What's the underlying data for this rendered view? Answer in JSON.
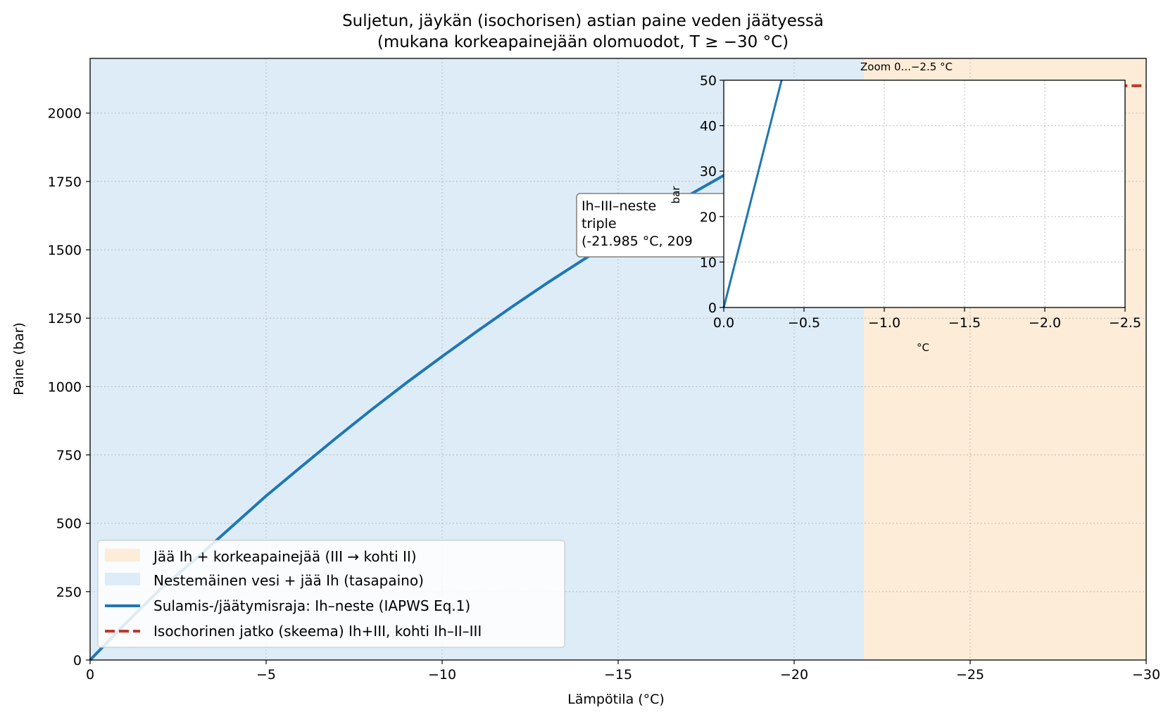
{
  "chart_data": [
    {
      "type": "line",
      "title": "Suljetun, jäykän (isochorisen) astian paine veden jäätyessä",
      "subtitle": "(mukana korkeapainejään olomuodot, T ≥ −30 °C)",
      "xlabel": "Lämpötila (°C)",
      "ylabel": "Paine (bar)",
      "xlim": [
        0,
        -30
      ],
      "ylim": [
        0,
        2200
      ],
      "x_ticks": [
        0,
        -5,
        -10,
        -15,
        -20,
        -25,
        -30
      ],
      "x_tick_labels": [
        "0",
        "−5",
        "−10",
        "−15",
        "−20",
        "−25",
        "−30"
      ],
      "y_ticks": [
        0,
        250,
        500,
        750,
        1000,
        1250,
        1500,
        1750,
        2000
      ],
      "y_tick_labels": [
        "0",
        "250",
        "500",
        "750",
        "1000",
        "1250",
        "1500",
        "1750",
        "2000"
      ],
      "grid": true,
      "legend_position": "lower-left",
      "regions": [
        {
          "name": "Nestemäinen vesi + jää Ih (tasapaino)",
          "x_from": 0,
          "x_to": -21.985,
          "color": "#ddecf7"
        },
        {
          "name": "Jää Ih + korkeapainejää (III → kohti II)",
          "x_from": -21.985,
          "x_to": -30,
          "color": "#fdecd8"
        }
      ],
      "series": [
        {
          "name": "Sulamis-/jäätymisraja: Ih–neste (IAPWS Eq.1)",
          "color": "#1f77b4",
          "style": "solid",
          "x": [
            0,
            -1,
            -2,
            -3,
            -4,
            -5,
            -6,
            -7,
            -8,
            -9,
            -10,
            -11,
            -12,
            -13,
            -14,
            -15,
            -16,
            -17,
            -18,
            -19,
            -20,
            -21,
            -21.985
          ],
          "y": [
            0,
            133,
            260,
            370,
            485,
            600,
            707,
            813,
            916,
            1015,
            1110,
            1203,
            1293,
            1380,
            1463,
            1545,
            1623,
            1699,
            1772,
            1842,
            1913,
            1983,
            2050
          ]
        },
        {
          "name": "Isochorinen jatko (skeema) Ih+III, kohti Ih–II–III",
          "color": "#c0392b",
          "style": "dashed",
          "x": [
            -21.985,
            -30
          ],
          "y": [
            2100,
            2100
          ]
        }
      ],
      "annotation": {
        "lines": [
          "Ih–III–neste",
          "triple",
          "(-21.985 °C, 209"
        ]
      }
    },
    {
      "type": "line",
      "title": "Zoom 0...−2.5 °C",
      "xlabel": "°C",
      "ylabel": "bar",
      "xlim": [
        0,
        -2.5
      ],
      "ylim": [
        0,
        50
      ],
      "x_ticks": [
        0,
        -0.5,
        -1,
        -1.5,
        -2,
        -2.5
      ],
      "x_tick_labels": [
        "0.0",
        "−0.5",
        "−1.0",
        "−1.5",
        "−2.0",
        "−2.5"
      ],
      "y_ticks": [
        0,
        10,
        20,
        30,
        40,
        50
      ],
      "y_tick_labels": [
        "0",
        "10",
        "20",
        "30",
        "40",
        "50"
      ],
      "grid": true,
      "series": [
        {
          "color": "#1f77b4",
          "x": [
            0,
            -0.36
          ],
          "y": [
            0,
            50
          ]
        }
      ]
    }
  ],
  "colors": {
    "boundary": "#1f77b4",
    "isochoric": "#c0392b",
    "liquid_region": "#ddecf7",
    "ice_region": "#fdecd8"
  }
}
